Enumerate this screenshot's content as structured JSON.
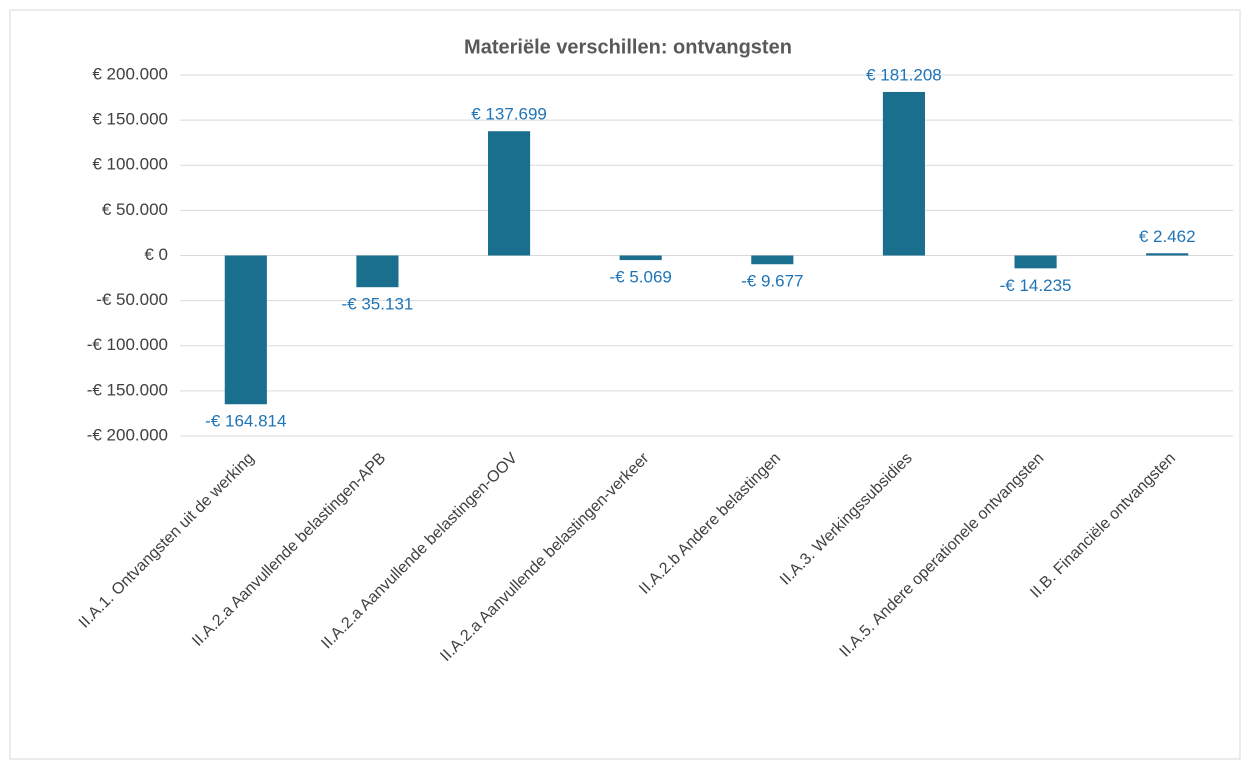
{
  "chart_data": {
    "type": "bar",
    "title": "Materiële verschillen: ontvangsten",
    "categories": [
      "II.A.1. Ontvangsten uit de werking",
      "II.A.2.a Aanvullende belastingen-APB",
      "II.A.2.a Aanvullende belastingen-OOV",
      "II.A.2.a Aanvullende belastingen-verkeer",
      "II.A.2.b Andere belastingen",
      "II.A.3. Werkingssubsidies",
      "II.A.5. Andere operationele ontvangsten",
      "II.B. Financiële ontvangsten"
    ],
    "values": [
      -164814,
      -35131,
      137699,
      -5069,
      -9677,
      181208,
      -14235,
      2462
    ],
    "value_labels": [
      "-€ 164.814",
      "-€ 35.131",
      "€ 137.699",
      "-€ 5.069",
      "-€ 9.677",
      "€ 181.208",
      "-€ 14.235",
      "€ 2.462"
    ],
    "color": "#1b6f8e",
    "ylim": [
      -200000,
      200000
    ],
    "yticks": [
      {
        "value": -200000,
        "label": "-€ 200.000"
      },
      {
        "value": -150000,
        "label": "-€ 150.000"
      },
      {
        "value": -100000,
        "label": "-€ 100.000"
      },
      {
        "value": -50000,
        "label": "-€ 50.000"
      },
      {
        "value": 0,
        "label": "€ 0"
      },
      {
        "value": 50000,
        "label": "€ 50.000"
      },
      {
        "value": 100000,
        "label": "€ 100.000"
      },
      {
        "value": 150000,
        "label": "€ 150.000"
      },
      {
        "value": 200000,
        "label": "€ 200.000"
      }
    ],
    "grid": true
  }
}
